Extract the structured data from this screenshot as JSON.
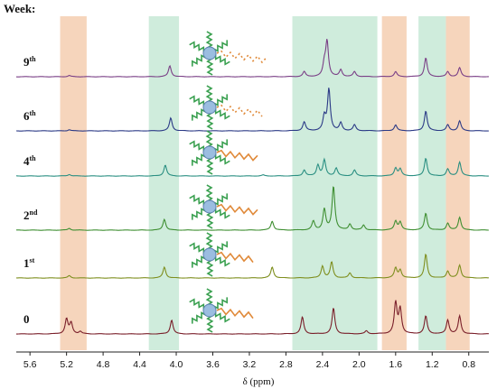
{
  "chart_data": {
    "type": "line",
    "title": "Week:",
    "xlabel": "δ (ppm)",
    "x_ticks": [
      "5.6",
      "5.2",
      "4.8",
      "4.4",
      "4.0",
      "3.6",
      "3.2",
      "2.8",
      "2.4",
      "2.0",
      "1.6",
      "1.2",
      "0.8"
    ],
    "xlim": [
      5.75,
      0.58
    ],
    "highlight_bands": [
      {
        "from": 5.27,
        "to": 4.98,
        "color": "#f3c7a6"
      },
      {
        "from": 4.3,
        "to": 3.97,
        "color": "#bfe6d0"
      },
      {
        "from": 2.73,
        "to": 1.8,
        "color": "#bfe6d0"
      },
      {
        "from": 1.75,
        "to": 1.48,
        "color": "#f3c7a6"
      },
      {
        "from": 1.35,
        "to": 1.05,
        "color": "#bfe6d0"
      },
      {
        "from": 1.05,
        "to": 0.79,
        "color": "#f3c7a6"
      }
    ],
    "series": [
      {
        "name": "9",
        "sup": "th",
        "color": "#7a3f86",
        "peaks": [
          [
            5.17,
            0.06
          ],
          [
            4.07,
            0.55
          ],
          [
            2.6,
            0.25
          ],
          [
            2.38,
            0.6
          ],
          [
            2.35,
            1.75
          ],
          [
            2.2,
            0.35
          ],
          [
            2.05,
            0.25
          ],
          [
            1.6,
            0.25
          ],
          [
            1.27,
            0.95
          ],
          [
            1.03,
            0.25
          ],
          [
            0.9,
            0.45
          ]
        ]
      },
      {
        "name": "6",
        "sup": "th",
        "color": "#2b3a86",
        "peaks": [
          [
            5.17,
            0.06
          ],
          [
            4.06,
            0.65
          ],
          [
            2.6,
            0.45
          ],
          [
            2.38,
            0.7
          ],
          [
            2.33,
            2.1
          ],
          [
            2.2,
            0.4
          ],
          [
            2.05,
            0.3
          ],
          [
            1.6,
            0.3
          ],
          [
            1.27,
            1.0
          ],
          [
            1.03,
            0.3
          ],
          [
            0.9,
            0.5
          ]
        ]
      },
      {
        "name": "4",
        "sup": "th",
        "color": "#2a8f82",
        "peaks": [
          [
            5.17,
            0.08
          ],
          [
            4.12,
            0.55
          ],
          [
            3.05,
            0.05
          ],
          [
            2.6,
            0.3
          ],
          [
            2.45,
            0.55
          ],
          [
            2.38,
            0.8
          ],
          [
            2.25,
            0.4
          ],
          [
            2.05,
            0.3
          ],
          [
            1.6,
            0.4
          ],
          [
            1.55,
            0.35
          ],
          [
            1.27,
            0.9
          ],
          [
            1.03,
            0.35
          ],
          [
            0.9,
            0.7
          ]
        ]
      },
      {
        "name": "2",
        "sup": "nd",
        "color": "#3f8f32",
        "peaks": [
          [
            5.17,
            0.09
          ],
          [
            4.13,
            0.55
          ],
          [
            2.95,
            0.45
          ],
          [
            2.5,
            0.45
          ],
          [
            2.38,
            1.05
          ],
          [
            2.28,
            2.2
          ],
          [
            2.1,
            0.3
          ],
          [
            1.95,
            0.25
          ],
          [
            1.6,
            0.45
          ],
          [
            1.55,
            0.4
          ],
          [
            1.27,
            0.85
          ],
          [
            1.03,
            0.35
          ],
          [
            0.9,
            0.65
          ]
        ]
      },
      {
        "name": "1",
        "sup": "st",
        "color": "#7f8f1f",
        "peaks": [
          [
            5.17,
            0.12
          ],
          [
            4.13,
            0.55
          ],
          [
            2.95,
            0.55
          ],
          [
            2.4,
            0.6
          ],
          [
            2.3,
            0.8
          ],
          [
            2.1,
            0.25
          ],
          [
            1.6,
            0.5
          ],
          [
            1.55,
            0.4
          ],
          [
            1.27,
            1.2
          ],
          [
            1.03,
            0.35
          ],
          [
            0.9,
            0.65
          ]
        ]
      },
      {
        "name": "0",
        "sup": "",
        "color": "#7a1f2a",
        "peaks": [
          [
            5.2,
            0.75
          ],
          [
            5.15,
            0.55
          ],
          [
            5.05,
            0.12
          ],
          [
            4.05,
            0.7
          ],
          [
            2.62,
            0.85
          ],
          [
            2.28,
            1.3
          ],
          [
            1.92,
            0.15
          ],
          [
            1.6,
            1.55
          ],
          [
            1.55,
            1.25
          ],
          [
            1.27,
            0.9
          ],
          [
            1.03,
            0.7
          ],
          [
            0.9,
            0.9
          ]
        ]
      }
    ]
  }
}
